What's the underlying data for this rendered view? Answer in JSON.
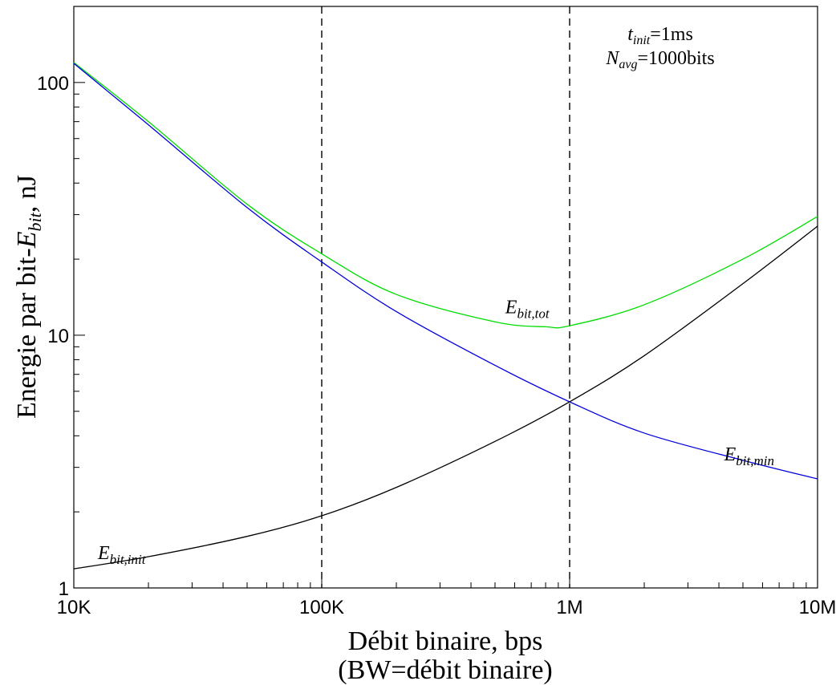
{
  "chart_data": {
    "type": "line",
    "x_scale": "log",
    "y_scale": "log",
    "xlim": [
      10000,
      10000000
    ],
    "ylim": [
      1,
      200
    ],
    "x_ticks": [
      {
        "value": 10000,
        "label": "10K"
      },
      {
        "value": 100000,
        "label": "100K"
      },
      {
        "value": 1000000,
        "label": "1M"
      },
      {
        "value": 10000000,
        "label": "10M"
      }
    ],
    "y_ticks": [
      {
        "value": 1,
        "label": "1"
      },
      {
        "value": 10,
        "label": "10"
      },
      {
        "value": 100,
        "label": "100"
      }
    ],
    "xlabel_line1": "Débit binaire, bps",
    "xlabel_line2": "(BW=débit binaire)",
    "ylabel": {
      "main": "Energie par bit-",
      "var": "E",
      "sub": "bit",
      "tail": ", nJ"
    },
    "grid": false,
    "vertical_lines": [
      100000,
      1000000
    ],
    "annotation": {
      "line1": {
        "var": "t",
        "sub": "init",
        "rest": "=1ms"
      },
      "line2": {
        "var": "N",
        "sub": "avg",
        "rest": "=1000bits"
      }
    },
    "series": [
      {
        "name": "E_bit,tot",
        "var": "E",
        "sub": "bit,tot",
        "color": "#00dd00",
        "label_at": [
          550000,
          12.2
        ],
        "x": [
          10000,
          20000,
          50000,
          100000,
          200000,
          500000,
          800000,
          1000000,
          2000000,
          5000000,
          10000000
        ],
        "y": [
          120,
          70,
          33,
          21,
          14.5,
          11.3,
          10.8,
          10.9,
          13.2,
          20,
          29.5
        ]
      },
      {
        "name": "E_bit,min",
        "var": "E",
        "sub": "bit,min",
        "color": "#0000dd",
        "label_at": [
          4200000,
          3.2
        ],
        "x": [
          10000,
          20000,
          50000,
          100000,
          200000,
          500000,
          1000000,
          2000000,
          5000000,
          10000000
        ],
        "y": [
          119,
          68,
          32,
          19.5,
          12.4,
          7.6,
          5.45,
          4.1,
          3.2,
          2.7
        ]
      },
      {
        "name": "E_bit,init",
        "var": "E",
        "sub": "bit,init",
        "color": "#000000",
        "label_at": [
          12500,
          1.3
        ],
        "x": [
          10000,
          20000,
          50000,
          100000,
          200000,
          500000,
          1000000,
          2000000,
          5000000,
          10000000
        ],
        "y": [
          1.19,
          1.33,
          1.6,
          1.93,
          2.5,
          3.8,
          5.45,
          8.3,
          16,
          27
        ]
      }
    ]
  }
}
